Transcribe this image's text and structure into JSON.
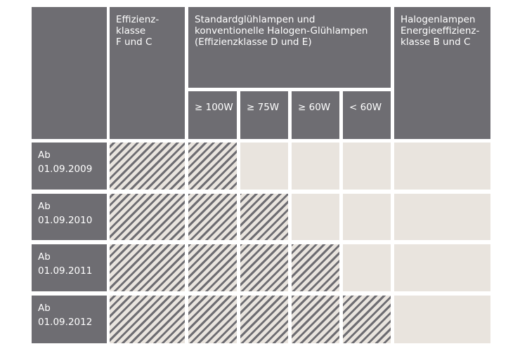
{
  "header": {
    "col1": [
      "Effizienz-",
      "klasse",
      "F und C"
    ],
    "col2": [
      "Standardglühlampen und",
      "konventionelle Halogen-Glühlampen",
      "(Effizienzklasse D und E)"
    ],
    "col3": [
      "Halogenlampen",
      "Energieeffizienz-",
      "klasse B und C"
    ],
    "sub": [
      "≥ 100W",
      "≥ 75W",
      "≥ 60W",
      "< 60W"
    ]
  },
  "rows": [
    {
      "label": [
        "Ab",
        "01.09.2009"
      ]
    },
    {
      "label": [
        "Ab",
        "01.09.2010"
      ]
    },
    {
      "label": [
        "Ab",
        "01.09.2011"
      ]
    },
    {
      "label": [
        "Ab",
        "01.09.2012"
      ]
    }
  ],
  "colors": {
    "dark": "#6e6d72",
    "light": "#e9e4de",
    "background": "#ffffff"
  }
}
